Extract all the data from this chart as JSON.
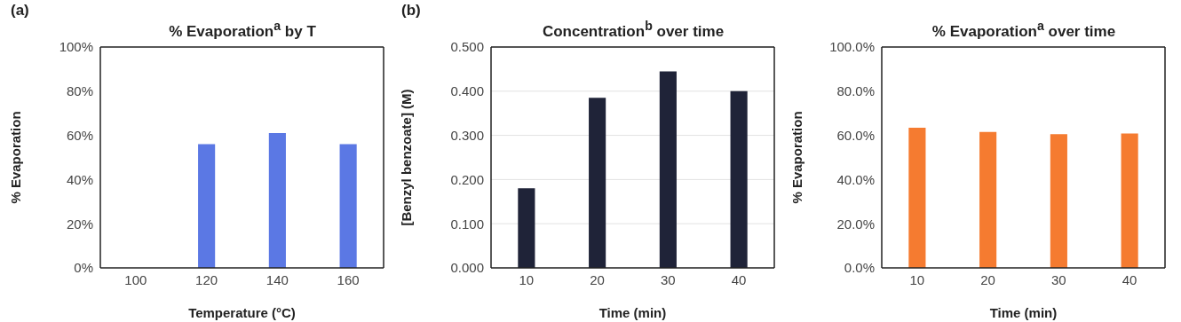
{
  "chart_data": [
    {
      "type": "bar",
      "title": "% Evaporation$^{a}$ by T",
      "xlabel": "Temperature (°C)",
      "ylabel": "% Evaporation",
      "categories": [
        "100",
        "120",
        "140",
        "160"
      ],
      "values": [
        0,
        56,
        61,
        56
      ],
      "color": "#5b78e4",
      "ylim": [
        0,
        100
      ],
      "yticks": [
        {
          "value": 0,
          "label": "0%"
        },
        {
          "value": 20,
          "label": "20%"
        },
        {
          "value": 40,
          "label": "40%"
        },
        {
          "value": 60,
          "label": "60%"
        },
        {
          "value": 80,
          "label": "80%"
        },
        {
          "value": 100,
          "label": "100%"
        }
      ],
      "annotations": [
        "(a)"
      ]
    },
    {
      "type": "bar",
      "title": "Concentration$^{b}$ over time",
      "xlabel": "Time (min)",
      "ylabel": "[Benzyl benzoate] (M)",
      "categories": [
        "10",
        "20",
        "30",
        "40"
      ],
      "values": [
        0.18,
        0.385,
        0.445,
        0.4
      ],
      "color": "#1f2338",
      "ylim": [
        0,
        0.5
      ],
      "yticks": [
        {
          "value": 0,
          "label": "0.000"
        },
        {
          "value": 0.1,
          "label": "0.100"
        },
        {
          "value": 0.2,
          "label": "0.200"
        },
        {
          "value": 0.3,
          "label": "0.300"
        },
        {
          "value": 0.4,
          "label": "0.400"
        },
        {
          "value": 0.5,
          "label": "0.500"
        }
      ],
      "grid": "y",
      "annotations": [
        "(b)"
      ]
    },
    {
      "type": "bar",
      "title": "% Evaporation$^{a}$ over time",
      "xlabel": "Time (min)",
      "ylabel": "% Evaporation",
      "categories": [
        "10",
        "20",
        "30",
        "40"
      ],
      "values": [
        63.5,
        61.5,
        60.5,
        60.8
      ],
      "color": "#f57b30",
      "ylim": [
        0,
        100
      ],
      "yticks": [
        {
          "value": 0,
          "label": "0.0%"
        },
        {
          "value": 20,
          "label": "20.0%"
        },
        {
          "value": 40,
          "label": "40.0%"
        },
        {
          "value": 60,
          "label": "60.0%"
        },
        {
          "value": 80,
          "label": "80.0%"
        },
        {
          "value": 100,
          "label": "100.0%"
        }
      ]
    }
  ]
}
